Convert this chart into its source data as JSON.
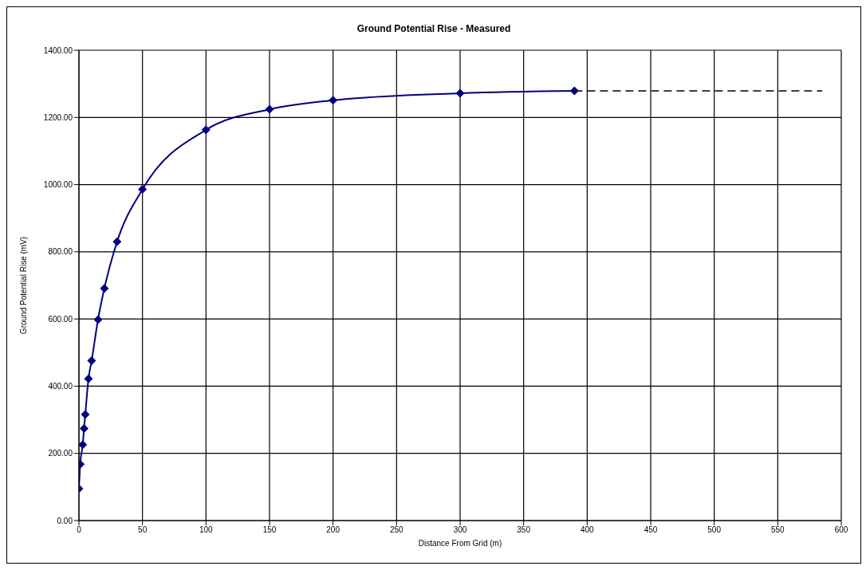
{
  "chart_data": {
    "type": "line",
    "title": "Ground Potential Rise - Measured",
    "xlabel": "Distance From Grid (m)",
    "ylabel": "Ground Potential Rise (mV)",
    "series": [
      {
        "color": "#000080",
        "marker": "diamond",
        "line_style": "solid",
        "x": [
          0,
          1,
          3,
          4,
          5,
          7.5,
          10,
          15,
          20,
          30,
          50,
          100,
          150,
          200,
          300,
          390
        ],
        "values": [
          95,
          168,
          226,
          274,
          316,
          422,
          476,
          598,
          691,
          830,
          986,
          1163,
          1224,
          1251,
          1272,
          1279
        ]
      },
      {
        "color": "#000000",
        "marker": "none",
        "line_style": "dashed",
        "x": [
          390,
          585
        ],
        "values": [
          1279,
          1279
        ]
      }
    ],
    "xlim": [
      0,
      600
    ],
    "xticks": [
      0,
      50,
      100,
      150,
      200,
      250,
      300,
      350,
      400,
      450,
      500,
      550,
      600
    ],
    "ylim": [
      0,
      1400
    ],
    "yticks": [
      {
        "value": 0,
        "label": "0.00"
      },
      {
        "value": 200,
        "label": "200.00"
      },
      {
        "value": 400,
        "label": "400.00"
      },
      {
        "value": 600,
        "label": "600.00"
      },
      {
        "value": 800,
        "label": "800.00"
      },
      {
        "value": 1000,
        "label": "1000.00"
      },
      {
        "value": 1200,
        "label": "1200.00"
      },
      {
        "value": 1400,
        "label": "1400.00"
      }
    ],
    "grid": true
  }
}
